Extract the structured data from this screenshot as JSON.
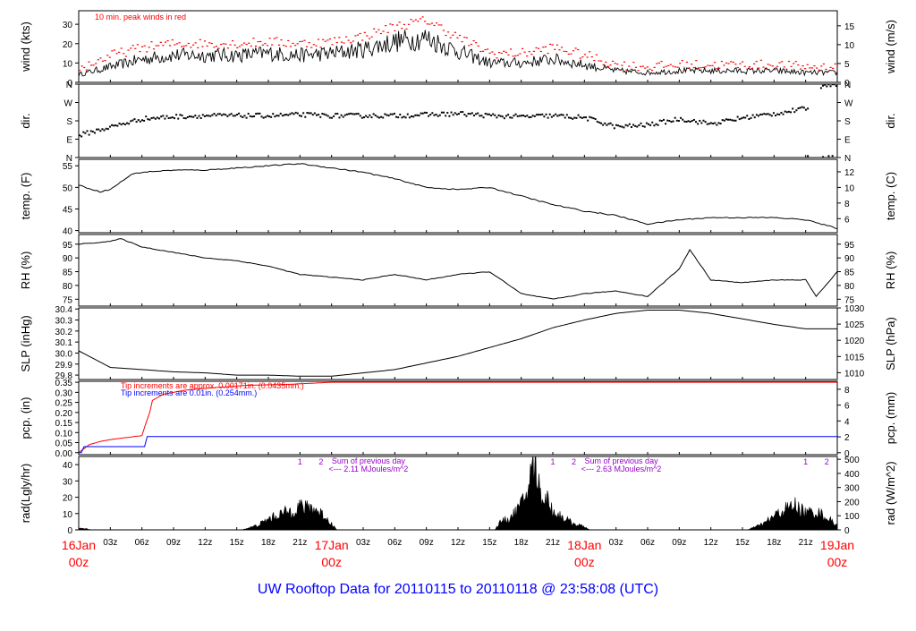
{
  "footer": {
    "title": "UW Rooftop Data for 20110115  to  20110118 @ 23:58:08  (UTC)"
  },
  "colors": {
    "frame": "#000000",
    "red": "#ff0000",
    "blue": "#0000ff",
    "purple": "#9900cc",
    "title": "#0000ff",
    "axis": "#000000"
  },
  "chart_data": [
    {
      "type": "line",
      "id": "wind",
      "ylabel": "wind (kts)",
      "ylabel_right": "wind (m/s)",
      "ylim": [
        0,
        37
      ],
      "ylim_right": [
        0,
        19
      ],
      "yticks": [
        "0",
        "10",
        "20",
        "30"
      ],
      "yticks_right": [
        "0",
        "5",
        "10",
        "15"
      ],
      "annotation": "10 min. peak winds in red",
      "series": [
        {
          "name": "",
          "color": "#000000",
          "x": [
            0,
            3,
            6,
            9,
            12,
            15,
            18,
            21,
            24,
            27,
            30,
            33,
            36,
            39,
            42,
            45,
            48,
            51,
            54,
            57,
            60,
            63,
            66,
            69,
            72
          ],
          "y": [
            4,
            8,
            12,
            14,
            14,
            14,
            15,
            14,
            15,
            17,
            21,
            23,
            16,
            10,
            10,
            12,
            9,
            6,
            5,
            6,
            6,
            6,
            6,
            5,
            5
          ]
        },
        {
          "name": "",
          "color": "#ff0000",
          "x": [
            0,
            3,
            6,
            9,
            12,
            15,
            18,
            21,
            24,
            27,
            30,
            33,
            36,
            39,
            42,
            45,
            48,
            51,
            54,
            57,
            60,
            63,
            66,
            69,
            72
          ],
          "y": [
            7,
            14,
            18,
            20,
            20,
            20,
            21,
            20,
            21,
            24,
            29,
            32,
            23,
            15,
            15,
            18,
            14,
            9,
            8,
            9,
            9,
            9,
            9,
            8,
            8
          ]
        }
      ]
    },
    {
      "type": "scatter",
      "id": "dir",
      "ylabel": "dir.",
      "ylabel_right": "dir.",
      "yticks": [
        "N",
        "E",
        "S",
        "W",
        "N"
      ],
      "yticks_right": [
        "N",
        "E",
        "S",
        "W",
        "N"
      ],
      "ylim": [
        0,
        360
      ],
      "series": [
        {
          "name": "",
          "color": "#000000",
          "x": [
            0,
            3,
            6,
            9,
            12,
            15,
            18,
            21,
            24,
            27,
            30,
            33,
            36,
            39,
            42,
            45,
            48,
            51,
            54,
            57,
            60,
            63,
            66,
            69,
            70.5,
            72
          ],
          "y": [
            110,
            150,
            190,
            200,
            205,
            205,
            205,
            210,
            205,
            205,
            205,
            210,
            215,
            205,
            200,
            205,
            195,
            150,
            160,
            190,
            165,
            195,
            215,
            240,
            360,
            360
          ]
        }
      ]
    },
    {
      "type": "line",
      "id": "temp",
      "ylabel": "temp. (F)",
      "ylabel_right": "temp. (C)",
      "ylim": [
        39.5,
        56.5
      ],
      "ylim_right": [
        4.2,
        13.6
      ],
      "yticks": [
        "40",
        "45",
        "50",
        "55"
      ],
      "yticks_right": [
        "6",
        "8",
        "10",
        "12"
      ],
      "series": [
        {
          "name": "",
          "color": "#000000",
          "x": [
            0,
            2,
            3,
            5,
            6,
            9,
            12,
            18,
            21,
            24,
            27,
            30,
            33,
            36,
            39,
            42,
            45,
            48,
            51,
            54,
            57,
            60,
            63,
            66,
            69,
            72
          ],
          "y": [
            50.5,
            49,
            49.5,
            53,
            53.5,
            54,
            54,
            55,
            55.5,
            54.5,
            53.5,
            52,
            50,
            49.5,
            50,
            48,
            46,
            44.5,
            43.5,
            41.5,
            42.5,
            43,
            43,
            43,
            42.5,
            40.5
          ]
        }
      ]
    },
    {
      "type": "line",
      "id": "rh",
      "ylabel": "RH (%)",
      "ylabel_right": "RH (%)",
      "ylim": [
        72.5,
        98.5
      ],
      "yticks": [
        "75",
        "80",
        "85",
        "90",
        "95"
      ],
      "yticks_right": [
        "75",
        "80",
        "85",
        "90",
        "95"
      ],
      "series": [
        {
          "name": "",
          "color": "#000000",
          "x": [
            0,
            3,
            4,
            6,
            9,
            12,
            15,
            18,
            21,
            24,
            27,
            30,
            33,
            36,
            39,
            42,
            45,
            48,
            51,
            54,
            57,
            58,
            60,
            63,
            66,
            69,
            70,
            72
          ],
          "y": [
            95,
            96,
            97,
            94,
            92,
            90,
            89,
            87,
            84,
            83,
            82,
            84,
            82,
            84,
            85,
            77,
            75,
            77,
            78,
            76,
            86,
            93,
            82,
            81,
            82,
            82,
            76,
            85
          ]
        }
      ]
    },
    {
      "type": "line",
      "id": "slp",
      "ylabel": "SLP (inHg)",
      "ylabel_right": "SLP (hPa)",
      "ylim": [
        29.76,
        30.41
      ],
      "ylim_right": [
        1007.9,
        1030
      ],
      "yticks": [
        "29.8",
        "29.9",
        "30.0",
        "30.1",
        "30.2",
        "30.3",
        "30.4"
      ],
      "yticks_right": [
        "1010",
        "1015",
        "1020",
        "1025",
        "1030"
      ],
      "series": [
        {
          "name": "",
          "color": "#000000",
          "x": [
            0,
            3,
            6,
            9,
            12,
            15,
            18,
            21,
            24,
            27,
            30,
            33,
            36,
            39,
            42,
            45,
            48,
            51,
            54,
            57,
            60,
            63,
            66,
            69,
            72
          ],
          "y": [
            30.02,
            29.87,
            29.85,
            29.83,
            29.82,
            29.8,
            29.8,
            29.79,
            29.79,
            29.82,
            29.85,
            29.91,
            29.97,
            30.05,
            30.13,
            30.23,
            30.3,
            30.36,
            30.39,
            30.39,
            30.36,
            30.31,
            30.26,
            30.22,
            30.22
          ]
        }
      ]
    },
    {
      "type": "line",
      "id": "pcp",
      "ylabel": "pcp. (in)",
      "ylabel_right": "pcp. (mm)",
      "ylim": [
        -0.01,
        0.355
      ],
      "ylim_right": [
        -0.25,
        9.0
      ],
      "yticks": [
        "0.00",
        "0.05",
        "0.10",
        "0.15",
        "0.20",
        "0.25",
        "0.30",
        "0.35"
      ],
      "yticks_right": [
        "0",
        "2",
        "4",
        "6",
        "8"
      ],
      "notes": [
        {
          "text": "Tip increments are approx. 0.00171in. (0.0435mm.)",
          "color": "#ff0000"
        },
        {
          "text": "Tip increments are 0.01in. (0.254mm.)",
          "color": "#0000ff"
        }
      ],
      "series": [
        {
          "name": "",
          "color": "#ff0000",
          "x": [
            0,
            0.5,
            1,
            2,
            3,
            4,
            5,
            6,
            6.4,
            6.8,
            7,
            8,
            10,
            12,
            16,
            20,
            22,
            24,
            36,
            48,
            60,
            72
          ],
          "y": [
            0,
            0.02,
            0.04,
            0.055,
            0.065,
            0.072,
            0.078,
            0.085,
            0.15,
            0.21,
            0.26,
            0.29,
            0.31,
            0.32,
            0.335,
            0.34,
            0.345,
            0.35,
            0.35,
            0.35,
            0.35,
            0.35
          ]
        },
        {
          "name": "",
          "color": "#0000ff",
          "x": [
            0,
            0.4,
            0.5,
            6.4,
            6.5,
            72
          ],
          "y": [
            0,
            0,
            0.03,
            0.03,
            0.08,
            0.08
          ]
        }
      ]
    },
    {
      "type": "area",
      "id": "rad",
      "ylabel": "rad(Lgly/hr)",
      "ylabel_right": "rad (W/m^2)",
      "ylim": [
        0,
        45
      ],
      "ylim_right": [
        0,
        520
      ],
      "yticks": [
        "0",
        "10",
        "20",
        "30",
        "40"
      ],
      "yticks_right": [
        "0",
        "100",
        "200",
        "300",
        "400",
        "500"
      ],
      "markers": [
        "1",
        "2",
        "1",
        "2",
        "1",
        "2"
      ],
      "sum_notes": [
        {
          "line1": "Sum of previous day",
          "line2": "<--- 2.11 MJoules/m^2"
        },
        {
          "line1": "Sum of previous day",
          "line2": "<--- 2.63 MJoules/m^2"
        }
      ],
      "series": [
        {
          "name": "",
          "color": "#000000",
          "x": [
            0,
            1,
            1.1,
            15.5,
            17,
            18,
            19,
            20,
            20.5,
            21,
            21.5,
            22,
            23,
            24,
            24.5,
            39.5,
            40,
            41,
            42,
            42.5,
            43,
            43.3,
            43.6,
            44,
            44.5,
            45,
            46,
            47,
            48,
            48.5,
            63.5,
            65,
            66,
            67,
            68,
            69,
            70,
            71,
            72
          ],
          "y": [
            1,
            0.5,
            0,
            0,
            3,
            7,
            10,
            12,
            14,
            16,
            14,
            15,
            11,
            4,
            0,
            0,
            5,
            8,
            16,
            24,
            38,
            46,
            30,
            22,
            20,
            12,
            8,
            4,
            2,
            0,
            0,
            4,
            9,
            13,
            16,
            11,
            12,
            8,
            3
          ]
        }
      ]
    }
  ],
  "x_axis": {
    "hour_ticks": [
      "03z",
      "06z",
      "09z",
      "12z",
      "15z",
      "18z",
      "21z",
      "03z",
      "06z",
      "09z",
      "12z",
      "15z",
      "18z",
      "21z",
      "03z",
      "06z",
      "09z",
      "12z",
      "15z",
      "18z",
      "21z"
    ],
    "day_labels": [
      {
        "date": "16Jan",
        "time": "00z"
      },
      {
        "date": "17Jan",
        "time": "00z"
      },
      {
        "date": "18Jan",
        "time": "00z"
      },
      {
        "date": "19Jan",
        "time": "00z"
      }
    ]
  }
}
